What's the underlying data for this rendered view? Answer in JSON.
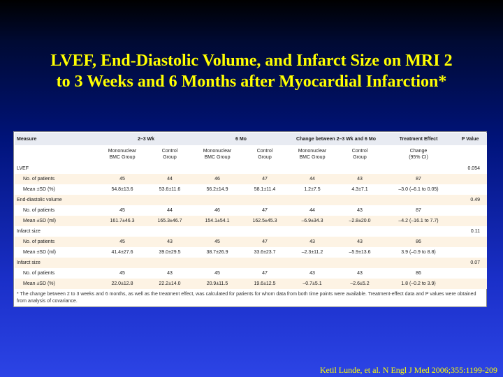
{
  "title": {
    "line1": "LVEF, End-Diastolic Volume, and Infarct Size on MRI 2",
    "line2": "to 3 Weeks and 6 Months after Myocardial Infarction*"
  },
  "table": {
    "headers": {
      "measure": "Measure",
      "wk": "2–3 Wk",
      "mo": "6 Mo",
      "change": "Change between 2–3 Wk and 6 Mo",
      "treatment": "Treatment Effect",
      "pvalue": "P Value"
    },
    "subheaders": {
      "bmc": [
        "Mononuclear",
        "BMC Group"
      ],
      "control": [
        "Control",
        "Group"
      ],
      "treatment": [
        "Change",
        "(95% CI)"
      ]
    },
    "sections": [
      {
        "name": "LVEF",
        "p": "0.054",
        "patients": [
          "No. of patients",
          "45",
          "44",
          "46",
          "47",
          "44",
          "43",
          "87"
        ],
        "mean": [
          "Mean ±SD (%)",
          "54.8±13.6",
          "53.6±11.6",
          "56.2±14.9",
          "58.1±11.4",
          "1.2±7.5",
          "4.3±7.1",
          "–3.0 (–6.1 to 0.05)"
        ]
      },
      {
        "name": "End-diastolic volume",
        "p": "0.49",
        "patients": [
          "No. of patients",
          "45",
          "44",
          "46",
          "47",
          "44",
          "43",
          "87"
        ],
        "mean": [
          "Mean ±SD (ml)",
          "161.7±46.3",
          "165.3±46.7",
          "154.1±54.1",
          "162.5±45.3",
          "–6.9±34.3",
          "–2.8±20.0",
          "–4.2 (–16.1 to 7.7)"
        ]
      },
      {
        "name": "Infarct size",
        "p": "0.11",
        "patients": [
          "No. of patients",
          "45",
          "43",
          "45",
          "47",
          "43",
          "43",
          "86"
        ],
        "mean": [
          "Mean ±SD (ml)",
          "41.4±27.6",
          "39.0±29.5",
          "38.7±26.9",
          "33.6±23.7",
          "–2.3±11.2",
          "–5.9±13.6",
          "3.9 (–0.9 to 8.8)"
        ]
      },
      {
        "name": "Infarct size",
        "p": "0.07",
        "patients": [
          "No. of patients",
          "45",
          "43",
          "45",
          "47",
          "43",
          "43",
          "86"
        ],
        "mean": [
          "Mean ±SD (%)",
          "22.0±12.8",
          "22.2±14.0",
          "20.9±11.5",
          "19.6±12.5",
          "–0.7±5.1",
          "–2.6±5.2",
          "1.8 (–0.2 to 3.9)"
        ]
      }
    ],
    "footnote": "* The change between 2 to 3 weeks and 6 months, as well as the treatment effect, was calculated for patients for whom data from both time points were available. Treatment-effect data and P values were obtained from analysis of covariance."
  },
  "citation": "Ketil Lunde, et al. N Engl J Med 2006;355:1199-209",
  "colors": {
    "title": "#ffff00",
    "background_top": "#000000",
    "background_bottom": "#2c44e6",
    "row_highlight": "#fdf3e4",
    "header_bg": "#e8ebf2"
  }
}
